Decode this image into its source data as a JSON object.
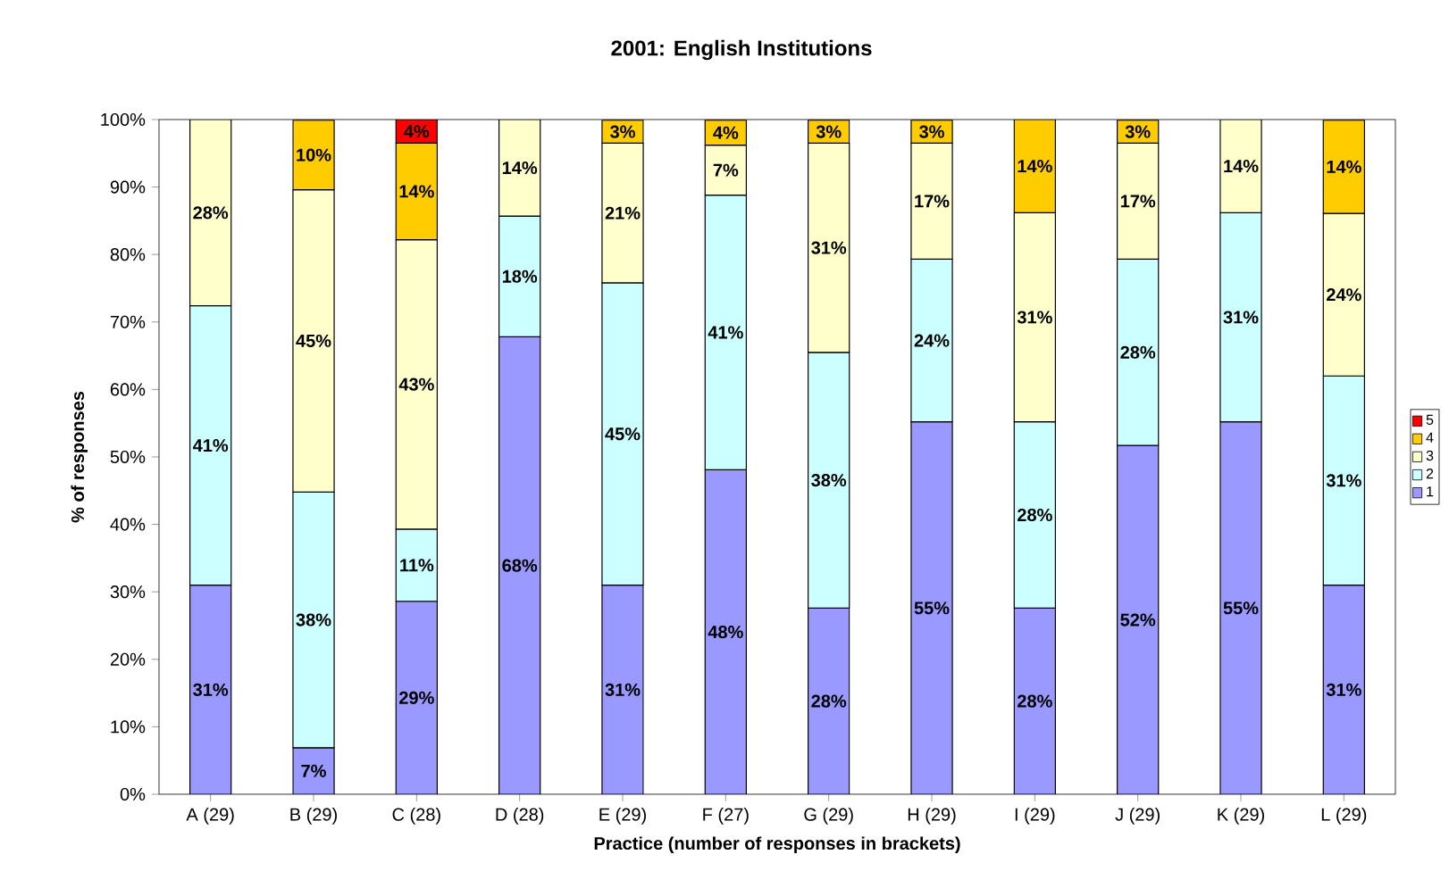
{
  "chart_data": {
    "type": "bar",
    "stacked": true,
    "title": "2001: English Institutions",
    "xlabel": "Practice (number of responses in brackets)",
    "ylabel": "% of responses",
    "categories": [
      "A (29)",
      "B (29)",
      "C (28)",
      "D (28)",
      "E (29)",
      "F (27)",
      "G (29)",
      "H (29)",
      "I (29)",
      "J (29)",
      "K (29)",
      "L (29)"
    ],
    "series": [
      {
        "name": "1",
        "color": "#9999ff",
        "values": [
          31.0,
          6.9,
          28.6,
          67.8,
          31.0,
          48.1,
          27.6,
          55.2,
          27.6,
          51.7,
          55.2,
          31.0
        ],
        "value_labels": [
          "31%",
          "7%",
          "29%",
          "68%",
          "31%",
          "48%",
          "28%",
          "55%",
          "28%",
          "52%",
          "55%",
          "31%"
        ]
      },
      {
        "name": "2",
        "color": "#ccffff",
        "values": [
          41.4,
          37.9,
          10.7,
          17.9,
          44.8,
          40.7,
          37.9,
          24.1,
          27.6,
          27.6,
          31.0,
          31.0
        ],
        "value_labels": [
          "41%",
          "38%",
          "11%",
          "18%",
          "45%",
          "41%",
          "38%",
          "24%",
          "28%",
          "28%",
          "31%",
          "31%"
        ]
      },
      {
        "name": "3",
        "color": "#ffffcc",
        "values": [
          27.6,
          44.8,
          42.9,
          14.3,
          20.7,
          7.4,
          31.0,
          17.2,
          31.0,
          17.2,
          13.8,
          24.1
        ],
        "value_labels": [
          "28%",
          "45%",
          "43%",
          "14%",
          "21%",
          "7%",
          "31%",
          "17%",
          "31%",
          "17%",
          "14%",
          "24%"
        ]
      },
      {
        "name": "4",
        "color": "#ffcc00",
        "values": [
          null,
          10.3,
          14.3,
          null,
          3.4,
          3.7,
          3.4,
          3.4,
          13.8,
          3.4,
          null,
          13.8
        ],
        "value_labels": [
          null,
          "10%",
          "14%",
          null,
          "3%",
          "4%",
          "3%",
          "3%",
          "14%",
          "3%",
          null,
          "14%"
        ]
      },
      {
        "name": "5",
        "color": "#ff0000",
        "values": [
          null,
          null,
          3.5,
          null,
          null,
          null,
          null,
          null,
          null,
          null,
          null,
          null
        ],
        "value_labels": [
          null,
          null,
          "4%",
          null,
          null,
          null,
          null,
          null,
          null,
          null,
          null,
          null
        ]
      }
    ],
    "ylim": [
      0,
      100
    ],
    "yticks": [
      {
        "value": 0,
        "label": "0%"
      },
      {
        "value": 10,
        "label": "10%"
      },
      {
        "value": 20,
        "label": "20%"
      },
      {
        "value": 30,
        "label": "30%"
      },
      {
        "value": 40,
        "label": "40%"
      },
      {
        "value": 50,
        "label": "50%"
      },
      {
        "value": 60,
        "label": "60%"
      },
      {
        "value": 70,
        "label": "70%"
      },
      {
        "value": 80,
        "label": "80%"
      },
      {
        "value": 90,
        "label": "90%"
      },
      {
        "value": 100,
        "label": "100%"
      }
    ],
    "grid": false,
    "legend": "right"
  }
}
